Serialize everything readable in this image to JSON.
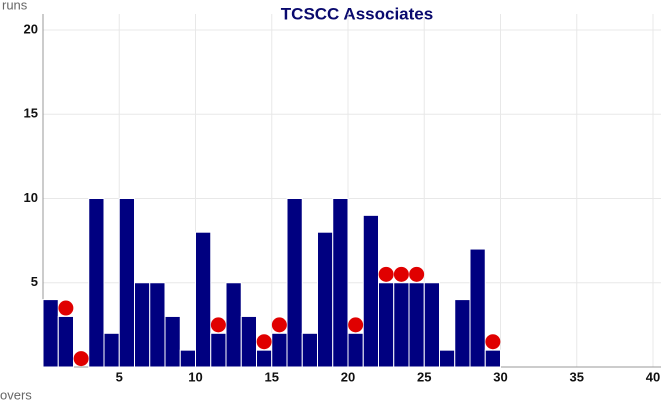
{
  "chart_data": {
    "type": "bar",
    "title": "TCSCC Associates",
    "y_label": "runs",
    "x_label": "overs",
    "xlim": [
      0,
      40
    ],
    "xticks": [
      5,
      10,
      15,
      20,
      25,
      30,
      35,
      40
    ],
    "ylim": [
      0,
      20
    ],
    "yticks": [
      5,
      10,
      15,
      20
    ],
    "grid": true,
    "series": [
      {
        "type": "bar",
        "color": "#000080",
        "x": [
          1,
          2,
          3,
          4,
          5,
          6,
          7,
          8,
          9,
          10,
          11,
          12,
          13,
          14,
          15,
          16,
          17,
          18,
          19,
          20,
          21,
          22,
          23,
          24,
          25,
          26,
          27,
          28,
          29,
          30
        ],
        "values": [
          4,
          3,
          0,
          10,
          2,
          10,
          5,
          5,
          3,
          1,
          8,
          2,
          5,
          3,
          1,
          2,
          10,
          2,
          8,
          10,
          2,
          9,
          5,
          5,
          5,
          5,
          1,
          4,
          7,
          1
        ]
      },
      {
        "type": "scatter",
        "color": "#e00000",
        "x": [
          2,
          3,
          12,
          15,
          16,
          21,
          23,
          24,
          25,
          30
        ],
        "values": [
          3.5,
          0.5,
          2.5,
          1.5,
          2.5,
          2.5,
          5.5,
          5.5,
          5.5,
          1.5
        ]
      }
    ]
  }
}
